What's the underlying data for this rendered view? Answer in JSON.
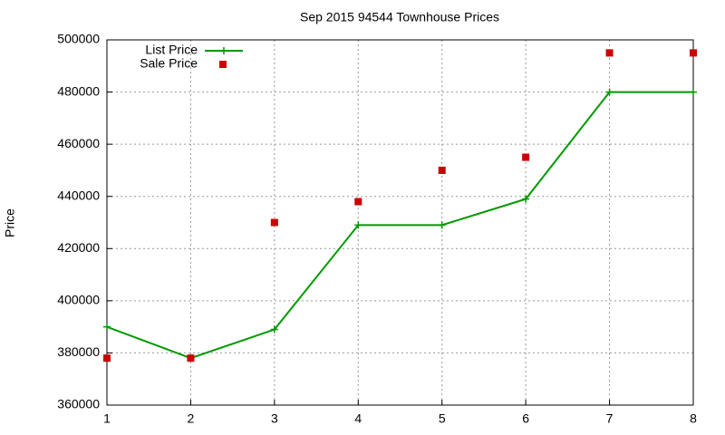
{
  "chart_data": {
    "type": "line",
    "title": "Sep 2015 94544 Townhouse Prices",
    "y_label": "Price",
    "x": [
      1,
      2,
      3,
      4,
      5,
      6,
      7,
      8
    ],
    "series": [
      {
        "name": "List Price",
        "color": "#009900",
        "style": "line",
        "values": [
          390000,
          378000,
          389000,
          429000,
          429000,
          439000,
          480000,
          480000
        ]
      },
      {
        "name": "Sale Price",
        "color": "#cc0000",
        "style": "points",
        "values": [
          378000,
          378000,
          430000,
          438000,
          450000,
          455000,
          495000,
          495000
        ]
      }
    ],
    "xlim": [
      1,
      8
    ],
    "xticks": [
      1,
      2,
      3,
      4,
      5,
      6,
      7,
      8
    ],
    "ylim": [
      360000,
      500000
    ],
    "yticks": [
      360000,
      380000,
      400000,
      420000,
      440000,
      460000,
      480000,
      500000
    ],
    "grid": true,
    "legend": "top-left"
  }
}
